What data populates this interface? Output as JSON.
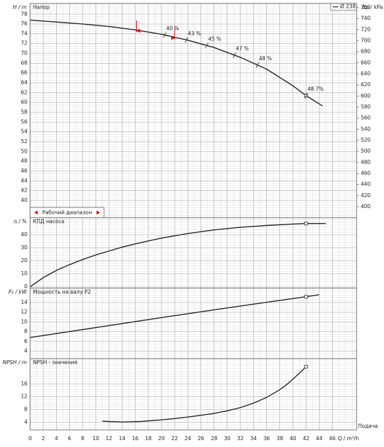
{
  "chart_data": [
    {
      "type": "line",
      "title": "Напор",
      "y_label": "H / m",
      "y2_label": "Δp / kPa",
      "xlim": [
        0,
        49.7
      ],
      "xticks": [
        0,
        2,
        4,
        6,
        8,
        10,
        12,
        14,
        16,
        18,
        20,
        22,
        24,
        26,
        28,
        30,
        32,
        34,
        36,
        38,
        40,
        42,
        44,
        46
      ],
      "ylim": [
        36.5,
        80.2
      ],
      "yticks": [
        40,
        42,
        44,
        46,
        48,
        50,
        52,
        54,
        56,
        58,
        60,
        62,
        64,
        66,
        68,
        70,
        72,
        74,
        76,
        78
      ],
      "y2lim": [
        380.1,
        767.4
      ],
      "y2ticks": [
        400,
        420,
        440,
        460,
        480,
        500,
        520,
        540,
        560,
        580,
        600,
        620,
        640,
        660,
        680,
        700,
        720,
        740,
        760
      ],
      "grid": true,
      "legend": "top-right",
      "marker_x": 42,
      "series": [
        {
          "name": "Ø 238",
          "color": "#222222",
          "x": [
            0,
            4,
            8,
            12,
            16,
            20,
            24,
            28,
            32,
            36,
            40,
            42,
            44.5
          ],
          "values": [
            76.8,
            76.4,
            76,
            75.5,
            74.8,
            73.9,
            72.7,
            71.2,
            69.2,
            66.8,
            63.4,
            61.4,
            59.3
          ]
        }
      ],
      "efficiency_marks": [
        {
          "x": 20.5,
          "label": "40 %"
        },
        {
          "x": 23.8,
          "label": "43 %"
        },
        {
          "x": 26.9,
          "label": "45 %"
        },
        {
          "x": 31.1,
          "label": "47 %"
        },
        {
          "x": 34.6,
          "label": "48 %"
        },
        {
          "x": 42,
          "label": "48.7%"
        }
      ],
      "operating_range": {
        "label": "Рабочий диапазон",
        "x": [
          16.2,
          22
        ],
        "color": "#e00000"
      }
    },
    {
      "type": "line",
      "title": "КПД насоса",
      "y_label": "η / %",
      "xlim": [
        0,
        49.7
      ],
      "xticks": [
        0,
        2,
        4,
        6,
        8,
        10,
        12,
        14,
        16,
        18,
        20,
        22,
        24,
        26,
        28,
        30,
        32,
        34,
        36,
        38,
        40,
        42,
        44,
        46
      ],
      "ylim": [
        -1.1,
        53.2
      ],
      "yticks": [
        0,
        10,
        20,
        30,
        40
      ],
      "grid": true,
      "marker_x": 42,
      "series": [
        {
          "color": "#222222",
          "x": [
            0,
            2,
            4,
            6,
            8,
            10,
            12,
            14,
            16,
            18,
            20,
            24,
            28,
            32,
            36,
            40,
            42,
            45
          ],
          "values": [
            0,
            7,
            12.6,
            17,
            21,
            24.5,
            27.5,
            30.5,
            33,
            35.3,
            37.5,
            41,
            43.8,
            45.8,
            47.2,
            48.3,
            48.7,
            48.7
          ]
        }
      ]
    },
    {
      "type": "line",
      "title": "Мощность на валу P2",
      "y_label": "P₂ / kW",
      "xlim": [
        0,
        49.7
      ],
      "xticks": [
        0,
        2,
        4,
        6,
        8,
        10,
        12,
        14,
        16,
        18,
        20,
        22,
        24,
        26,
        28,
        30,
        32,
        34,
        36,
        38,
        40,
        42,
        44,
        46
      ],
      "ylim": [
        2.45,
        16.95
      ],
      "yticks": [
        4,
        6,
        8,
        10,
        12,
        14
      ],
      "grid": true,
      "marker_x": 42,
      "series": [
        {
          "color": "#222222",
          "x": [
            0,
            10,
            20,
            30,
            42,
            44
          ],
          "values": [
            6.8,
            8.85,
            10.9,
            12.9,
            15.2,
            15.6
          ]
        }
      ]
    },
    {
      "type": "line",
      "title": "NPSH - значения",
      "y_label": "NPSH / m",
      "x_label": "Q / m³/h",
      "x_caption": "Подача",
      "xlim": [
        0,
        49.7
      ],
      "xticks": [
        0,
        2,
        4,
        6,
        8,
        10,
        12,
        14,
        16,
        18,
        20,
        22,
        24,
        26,
        28,
        30,
        32,
        34,
        36,
        38,
        40,
        42,
        44,
        46
      ],
      "ylim": [
        1.65,
        23.9
      ],
      "yticks": [
        4,
        8,
        12,
        16
      ],
      "grid": true,
      "marker_x": 42,
      "series": [
        {
          "color": "#222222",
          "x": [
            11,
            14,
            17,
            20,
            23,
            26,
            28,
            30,
            32,
            34,
            36,
            37,
            38,
            39,
            40,
            41,
            42
          ],
          "values": [
            4.4,
            4.1,
            4.3,
            4.8,
            5.4,
            6.2,
            6.8,
            7.6,
            8.6,
            10,
            11.8,
            13,
            14.2,
            15.7,
            17.5,
            19.4,
            21.4
          ]
        }
      ]
    }
  ]
}
